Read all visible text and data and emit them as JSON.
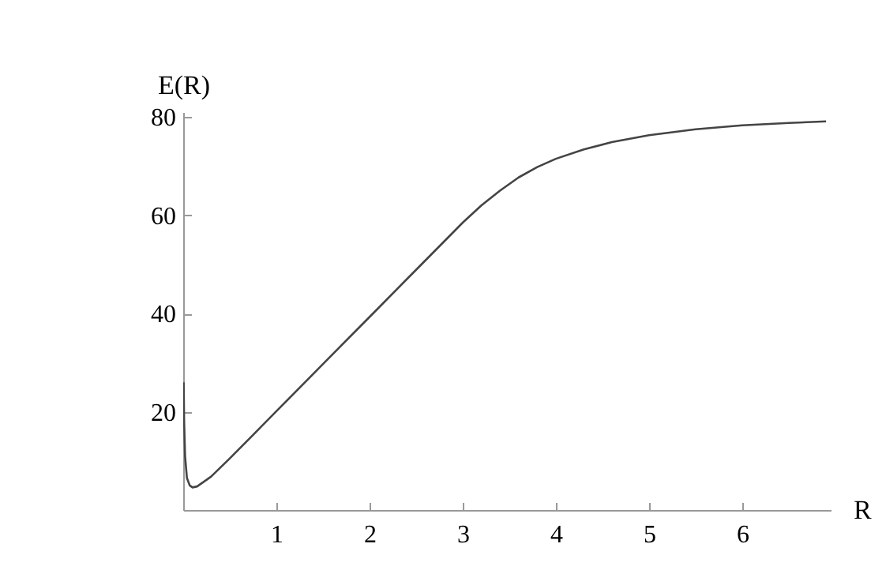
{
  "chart_data": {
    "type": "line",
    "xlabel": "R",
    "ylabel": "E(R)",
    "x": [
      0.005,
      0.01,
      0.02,
      0.04,
      0.07,
      0.1,
      0.15,
      0.3,
      0.5,
      0.75,
      1,
      1.5,
      2,
      2.5,
      3,
      3.2,
      3.4,
      3.6,
      3.8,
      4,
      4.3,
      4.6,
      5,
      5.5,
      6,
      6.5,
      6.9
    ],
    "series": [
      {
        "color": "#444444",
        "values": [
          26,
          18,
          11,
          6.5,
          5,
          4.6,
          4.8,
          6.8,
          10.5,
          15.3,
          20.1,
          29.7,
          39.3,
          48.9,
          58.5,
          62,
          65,
          67.7,
          69.8,
          71.5,
          73.4,
          74.9,
          76.3,
          77.5,
          78.3,
          78.8,
          79.1
        ]
      }
    ],
    "xlim": [
      0,
      6.95
    ],
    "ylim": [
      0,
      81
    ],
    "xticks": [
      1,
      2,
      3,
      4,
      5,
      6
    ],
    "yticks": [
      20,
      40,
      60,
      80
    ],
    "grid": false,
    "marker": "none",
    "line_style": "solid"
  }
}
